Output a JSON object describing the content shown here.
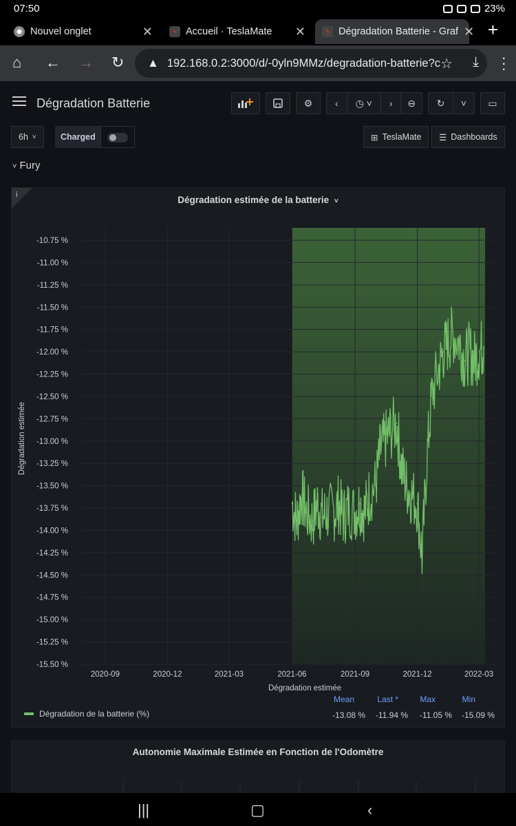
{
  "status_bar": {
    "time": "07:50",
    "battery": "23%"
  },
  "browser": {
    "tabs": [
      {
        "title": "Nouvel onglet",
        "active": false
      },
      {
        "title": "Accueil · TeslaMate",
        "active": false
      },
      {
        "title": "Dégradation Batterie - Graf",
        "active": true
      }
    ],
    "url": "192.168.0.2:3000/d/-0yln9MMz/degradation-batterie?c"
  },
  "dashboard": {
    "title": "Dégradation Batterie",
    "time_range": "6h",
    "charged_label": "Charged",
    "link_teslamate": "TeslaMate",
    "link_dashboards": "Dashboards",
    "row_title": "Fury"
  },
  "panel1": {
    "title": "Dégradation estimée de la batterie",
    "legend": {
      "series": "Dégradation de la batterie (%)",
      "headers": [
        "Mean",
        "Last *",
        "Max",
        "Min"
      ],
      "values": [
        "-13.08 %",
        "-11.94 %",
        "-11.05 %",
        "-15.09 %"
      ]
    }
  },
  "panel2": {
    "title": "Autonomie Maximale Estimée en Fonction de l'Odomètre"
  },
  "chart_data": {
    "type": "line",
    "title": "Dégradation estimée de la batterie",
    "xlabel": "Dégradation estimée",
    "ylabel": "Dégradation estimée",
    "x_ticks": [
      "2020-09",
      "2020-12",
      "2021-03",
      "2021-06",
      "2021-09",
      "2021-12",
      "2022-03"
    ],
    "y_ticks": [
      "-10.75 %",
      "-11.00 %",
      "-11.25 %",
      "-11.50 %",
      "-11.75 %",
      "-12.00 %",
      "-12.25 %",
      "-12.50 %",
      "-12.75 %",
      "-13.00 %",
      "-13.25 %",
      "-13.50 %",
      "-13.75 %",
      "-14.00 %",
      "-14.25 %",
      "-14.50 %",
      "-14.75 %",
      "-15.00 %",
      "-15.25 %",
      "-15.50 %"
    ],
    "ylim": [
      -15.5,
      -10.75
    ],
    "xlim": [
      "2020-08-08",
      "2022-03-22"
    ],
    "highlight_range": [
      "2021-06-01",
      "2022-03-10"
    ],
    "grid": true,
    "legend_position": "bottom",
    "series": [
      {
        "name": "Dégradation de la batterie (%)",
        "color": "#73bf69",
        "points": [
          [
            "2021-06-01",
            -13.7
          ],
          [
            "2021-06-08",
            -13.9
          ],
          [
            "2021-06-15",
            -13.6
          ],
          [
            "2021-06-22",
            -13.8
          ],
          [
            "2021-07-01",
            -13.9
          ],
          [
            "2021-07-08",
            -13.7
          ],
          [
            "2021-07-15",
            -13.85
          ],
          [
            "2021-07-22",
            -13.8
          ],
          [
            "2021-08-01",
            -13.8
          ],
          [
            "2021-08-08",
            -13.7
          ],
          [
            "2021-08-15",
            -13.85
          ],
          [
            "2021-08-22",
            -13.75
          ],
          [
            "2021-09-01",
            -13.8
          ],
          [
            "2021-09-08",
            -13.7
          ],
          [
            "2021-09-15",
            -13.8
          ],
          [
            "2021-09-22",
            -13.6
          ],
          [
            "2021-10-01",
            -13.5
          ],
          [
            "2021-10-08",
            -13.1
          ],
          [
            "2021-10-15",
            -13.0
          ],
          [
            "2021-10-22",
            -12.9
          ],
          [
            "2021-11-01",
            -12.8
          ],
          [
            "2021-11-08",
            -13.3
          ],
          [
            "2021-11-15",
            -13.5
          ],
          [
            "2021-11-22",
            -13.6
          ],
          [
            "2021-12-01",
            -13.7
          ],
          [
            "2021-12-08",
            -14.3
          ],
          [
            "2021-12-15",
            -13.2
          ],
          [
            "2021-12-22",
            -12.5
          ],
          [
            "2022-01-01",
            -12.2
          ],
          [
            "2022-01-08",
            -12.0
          ],
          [
            "2022-01-15",
            -11.9
          ],
          [
            "2022-01-22",
            -11.8
          ],
          [
            "2022-02-01",
            -11.9
          ],
          [
            "2022-02-08",
            -12.1
          ],
          [
            "2022-02-15",
            -12.0
          ],
          [
            "2022-02-22",
            -12.1
          ],
          [
            "2022-03-01",
            -12.0
          ],
          [
            "2022-03-08",
            -11.94
          ]
        ],
        "mean": -13.08,
        "last": -11.94,
        "max": -11.05,
        "min": -15.09
      }
    ]
  }
}
